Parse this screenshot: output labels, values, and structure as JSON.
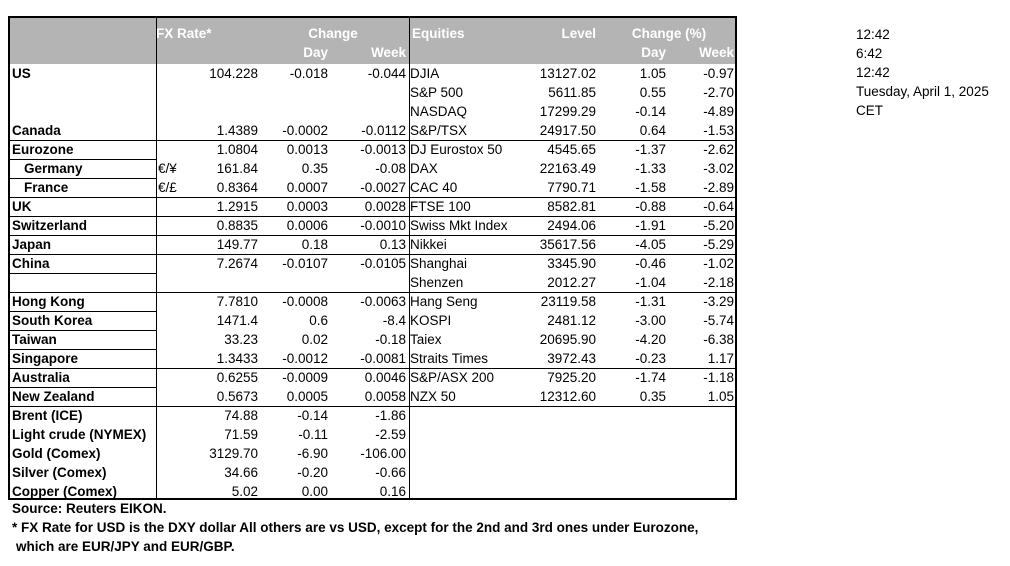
{
  "header": {
    "fx_rate": "FX Rate*",
    "change": "Change",
    "day": "Day",
    "week": "Week",
    "equities": "Equities",
    "level": "Level",
    "change_pct": "Change (%)",
    "day2": "Day",
    "week2": "Week"
  },
  "rows": [
    {
      "country": "US",
      "indent": false,
      "cur": "",
      "fx": "104.228",
      "fxd": "-0.018",
      "fxw": "-0.044",
      "eq": "DJIA",
      "lvl": "13127.02",
      "ed": "1.05",
      "ew": "-0.97"
    },
    {
      "country": "",
      "indent": false,
      "cur": "",
      "fx": "",
      "fxd": "",
      "fxw": "",
      "eq": "S&P 500",
      "lvl": "5611.85",
      "ed": "0.55",
      "ew": "-2.70"
    },
    {
      "country": "",
      "indent": false,
      "cur": "",
      "fx": "",
      "fxd": "",
      "fxw": "",
      "eq": "NASDAQ",
      "lvl": "17299.29",
      "ed": "-0.14",
      "ew": "-4.89"
    },
    {
      "country": "Canada",
      "indent": false,
      "cur": "",
      "fx": "1.4389",
      "fxd": "-0.0002",
      "fxw": "-0.0112",
      "eq": "S&P/TSX",
      "lvl": "24917.50",
      "ed": "0.64",
      "ew": "-1.53"
    },
    {
      "country": "Eurozone",
      "indent": false,
      "cur": "",
      "fx": "1.0804",
      "fxd": "0.0013",
      "fxw": "-0.0013",
      "eq": "DJ Eurostox 50",
      "lvl": "4545.65",
      "ed": "-1.37",
      "ew": "-2.62"
    },
    {
      "country": "Germany",
      "indent": true,
      "cur": "€/¥",
      "fx": "161.84",
      "fxd": "0.35",
      "fxw": "-0.08",
      "eq": "DAX",
      "lvl": "22163.49",
      "ed": "-1.33",
      "ew": "-3.02"
    },
    {
      "country": "France",
      "indent": true,
      "cur": "€/£",
      "fx": "0.8364",
      "fxd": "0.0007",
      "fxw": "-0.0027",
      "eq": "CAC 40",
      "lvl": "7790.71",
      "ed": "-1.58",
      "ew": "-2.89"
    },
    {
      "country": "UK",
      "indent": false,
      "cur": "",
      "fx": "1.2915",
      "fxd": "0.0003",
      "fxw": "0.0028",
      "eq": "FTSE 100",
      "lvl": "8582.81",
      "ed": "-0.88",
      "ew": "-0.64"
    },
    {
      "country": "Switzerland",
      "indent": false,
      "cur": "",
      "fx": "0.8835",
      "fxd": "0.0006",
      "fxw": "-0.0010",
      "eq": "Swiss Mkt Index",
      "lvl": "2494.06",
      "ed": "-1.91",
      "ew": "-5.20"
    },
    {
      "country": "Japan",
      "indent": false,
      "cur": "",
      "fx": "149.77",
      "fxd": "0.18",
      "fxw": "0.13",
      "eq": "Nikkei",
      "lvl": "35617.56",
      "ed": "-4.05",
      "ew": "-5.29"
    },
    {
      "country": "China",
      "indent": false,
      "cur": "",
      "fx": "7.2674",
      "fxd": "-0.0107",
      "fxw": "-0.0105",
      "eq": "Shanghai",
      "lvl": "3345.90",
      "ed": "-0.46",
      "ew": "-1.02"
    },
    {
      "country": "",
      "indent": false,
      "cur": "",
      "fx": "",
      "fxd": "",
      "fxw": "",
      "eq": "Shenzen",
      "lvl": "2012.27",
      "ed": "-1.04",
      "ew": "-2.18"
    },
    {
      "country": "Hong Kong",
      "indent": false,
      "cur": "",
      "fx": "7.7810",
      "fxd": "-0.0008",
      "fxw": "-0.0063",
      "eq": "Hang Seng",
      "lvl": "23119.58",
      "ed": "-1.31",
      "ew": "-3.29"
    },
    {
      "country": "South Korea",
      "indent": false,
      "cur": "",
      "fx": "1471.4",
      "fxd": "0.6",
      "fxw": "-8.4",
      "eq": "KOSPI",
      "lvl": "2481.12",
      "ed": "-3.00",
      "ew": "-5.74"
    },
    {
      "country": "Taiwan",
      "indent": false,
      "cur": "",
      "fx": "33.23",
      "fxd": "0.02",
      "fxw": "-0.18",
      "eq": "Taiex",
      "lvl": "20695.90",
      "ed": "-4.20",
      "ew": "-6.38"
    },
    {
      "country": "Singapore",
      "indent": false,
      "cur": "",
      "fx": "1.3433",
      "fxd": "-0.0012",
      "fxw": "-0.0081",
      "eq": "Straits Times",
      "lvl": "3972.43",
      "ed": "-0.23",
      "ew": "1.17"
    },
    {
      "country": "Australia",
      "indent": false,
      "cur": "",
      "fx": "0.6255",
      "fxd": "-0.0009",
      "fxw": "0.0046",
      "eq": "S&P/ASX  200",
      "lvl": "7925.20",
      "ed": "-1.74",
      "ew": "-1.18"
    },
    {
      "country": "New Zealand",
      "indent": false,
      "cur": "",
      "fx": "0.5673",
      "fxd": "0.0005",
      "fxw": "0.0058",
      "eq": "NZX 50",
      "lvl": "12312.60",
      "ed": "0.35",
      "ew": "1.05"
    },
    {
      "country": "Brent (ICE)",
      "indent": false,
      "cur": "",
      "fx": "74.88",
      "fxd": "-0.14",
      "fxw": "-1.86",
      "eq": "",
      "lvl": "",
      "ed": "",
      "ew": ""
    },
    {
      "country": "Light crude (NYMEX)",
      "indent": false,
      "cur": "",
      "fx": "71.59",
      "fxd": "-0.11",
      "fxw": "-2.59",
      "eq": "",
      "lvl": "",
      "ed": "",
      "ew": ""
    },
    {
      "country": "Gold (Comex)",
      "indent": false,
      "cur": "",
      "fx": "3129.70",
      "fxd": "-6.90",
      "fxw": "-106.00",
      "eq": "",
      "lvl": "",
      "ed": "",
      "ew": ""
    },
    {
      "country": "Silver (Comex)",
      "indent": false,
      "cur": "",
      "fx": "34.66",
      "fxd": "-0.20",
      "fxw": "-0.66",
      "eq": "",
      "lvl": "",
      "ed": "",
      "ew": ""
    },
    {
      "country": "Copper (Comex)",
      "indent": false,
      "cur": "",
      "fx": "5.02",
      "fxd": "0.00",
      "fxw": "0.16",
      "eq": "",
      "lvl": "",
      "ed": "",
      "ew": ""
    }
  ],
  "times": [
    "12:42",
    "6:42",
    "12:42",
    "Tuesday, April 1, 2025",
    "CET"
  ],
  "notes": {
    "source": "Source:  Reuters EIKON.",
    "footnote1": "* FX Rate for USD is the DXY dollar  All others are vs USD, except for the 2nd and 3rd ones under Eurozone,",
    "footnote2": "which are EUR/JPY and EUR/GBP."
  }
}
